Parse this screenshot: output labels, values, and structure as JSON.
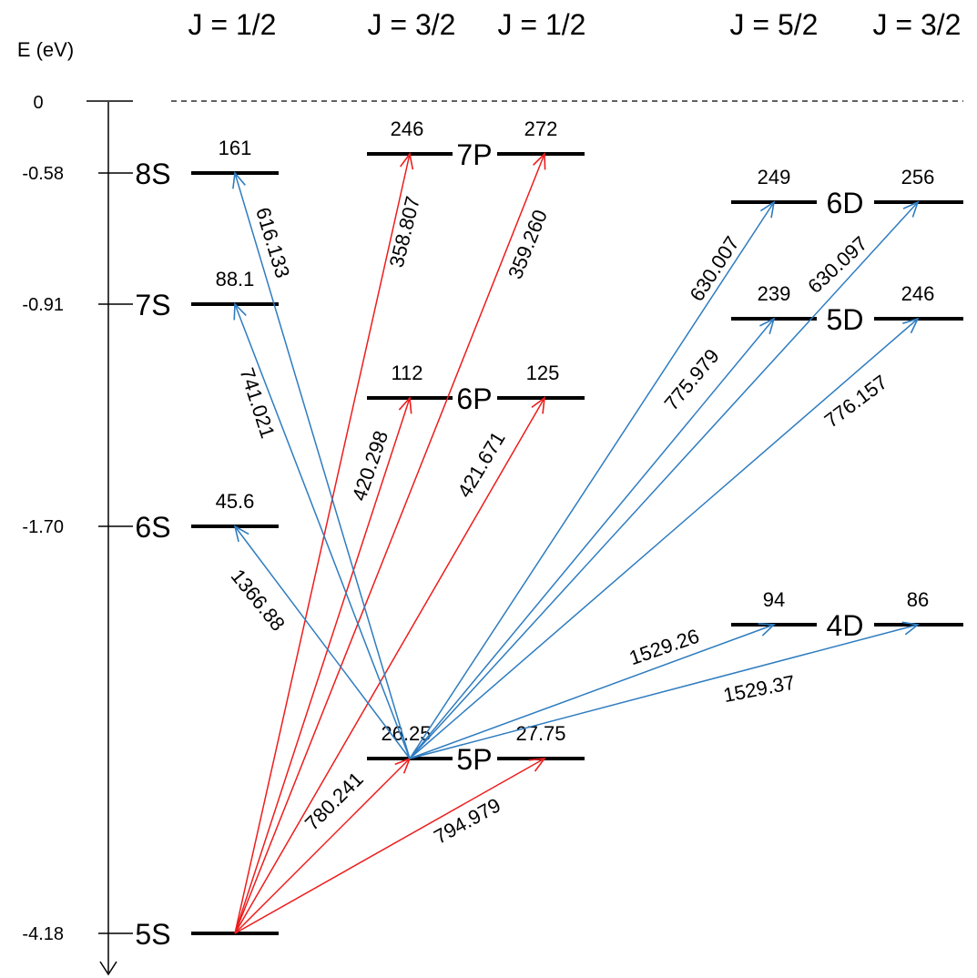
{
  "axis": {
    "title": "E (eV)"
  },
  "j_headers": [
    "J = 1/2",
    "J = 3/2",
    "J = 1/2",
    "J = 5/2",
    "J = 3/2"
  ],
  "energies": [
    "0",
    "-0.58",
    "-0.91",
    "-1.70",
    "-4.18"
  ],
  "states": [
    "8S",
    "7S",
    "6S",
    "5S",
    "7P",
    "6P",
    "5P",
    "6D",
    "5D",
    "4D"
  ],
  "level_values": {
    "s8": "161",
    "s7": "88.1",
    "s6": "45.6",
    "p7a": "246",
    "p7b": "272",
    "p6a": "112",
    "p6b": "125",
    "p5a": "26.25",
    "p5b": "27.75",
    "d6a": "249",
    "d6b": "256",
    "d5a": "239",
    "d5b": "246",
    "d4a": "94",
    "d4b": "86"
  },
  "wavelengths": {
    "w616": "616.133",
    "w741": "741.021",
    "w1366": "1366.88",
    "w358": "358.807",
    "w359": "359.260",
    "w420": "420.298",
    "w421": "421.671",
    "w780": "780.241",
    "w794": "794.979",
    "w630a": "630.007",
    "w630b": "630.097",
    "w775": "775.979",
    "w776": "776.157",
    "w1529a": "1529.26",
    "w1529b": "1529.37"
  },
  "colors": {
    "red_transition": "#ee1c1c",
    "blue_transition": "#2e7cc0",
    "level": "#000000"
  }
}
